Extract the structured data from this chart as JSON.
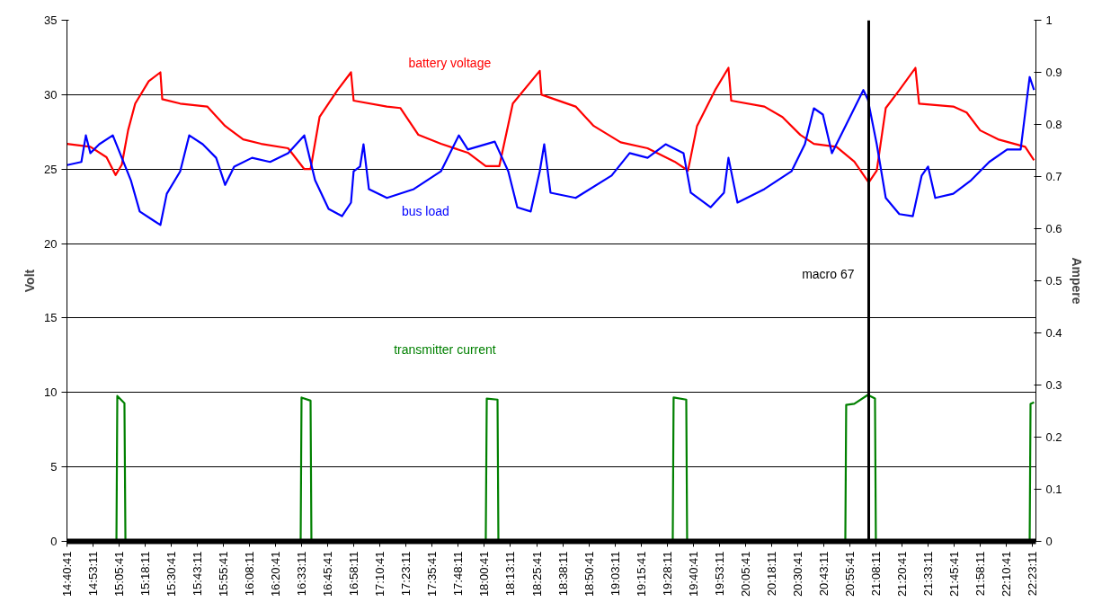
{
  "chart_data": {
    "type": "line",
    "xlabel": null,
    "ylabel": "Volt",
    "y2label": "Ampere",
    "xlim": [
      14.678,
      22.415
    ],
    "xticks": [
      {
        "value": 14.6781,
        "label": "14:40:41"
      },
      {
        "value": 14.8864,
        "label": "14:53:11"
      },
      {
        "value": 15.0947,
        "label": "15:05:41"
      },
      {
        "value": 15.3031,
        "label": "15:18:11"
      },
      {
        "value": 15.5114,
        "label": "15:30:41"
      },
      {
        "value": 15.7197,
        "label": "15:43:11"
      },
      {
        "value": 15.9281,
        "label": "15:55:41"
      },
      {
        "value": 16.1364,
        "label": "16:08:11"
      },
      {
        "value": 16.3447,
        "label": "16:20:41"
      },
      {
        "value": 16.5531,
        "label": "16:33:11"
      },
      {
        "value": 16.7614,
        "label": "16:45:41"
      },
      {
        "value": 16.9697,
        "label": "16:58:11"
      },
      {
        "value": 17.1781,
        "label": "17:10:41"
      },
      {
        "value": 17.3864,
        "label": "17:23:11"
      },
      {
        "value": 17.5947,
        "label": "17:35:41"
      },
      {
        "value": 17.8031,
        "label": "17:48:11"
      },
      {
        "value": 18.0114,
        "label": "18:00:41"
      },
      {
        "value": 18.2197,
        "label": "18:13:11"
      },
      {
        "value": 18.4281,
        "label": "18:25:41"
      },
      {
        "value": 18.6364,
        "label": "18:38:11"
      },
      {
        "value": 18.8447,
        "label": "18:50:41"
      },
      {
        "value": 19.0531,
        "label": "19:03:11"
      },
      {
        "value": 19.2614,
        "label": "19:15:41"
      },
      {
        "value": 19.4697,
        "label": "19:28:11"
      },
      {
        "value": 19.6781,
        "label": "19:40:41"
      },
      {
        "value": 19.8864,
        "label": "19:53:11"
      },
      {
        "value": 20.0947,
        "label": "20:05:41"
      },
      {
        "value": 20.3031,
        "label": "20:18:11"
      },
      {
        "value": 20.5114,
        "label": "20:30:41"
      },
      {
        "value": 20.7197,
        "label": "20:43:11"
      },
      {
        "value": 20.9281,
        "label": "20:55:41"
      },
      {
        "value": 21.1364,
        "label": "21:08:11"
      },
      {
        "value": 21.3447,
        "label": "21:20:41"
      },
      {
        "value": 21.5531,
        "label": "21:33:11"
      },
      {
        "value": 21.7614,
        "label": "21:45:41"
      },
      {
        "value": 21.9697,
        "label": "21:58:11"
      },
      {
        "value": 22.1781,
        "label": "22:10:41"
      },
      {
        "value": 22.3864,
        "label": "22:23:11"
      }
    ],
    "ylim": [
      0,
      35
    ],
    "yticks": [
      0,
      5,
      10,
      15,
      20,
      25,
      30,
      35
    ],
    "y2lim": [
      0,
      1
    ],
    "y2ticks": [
      0,
      0.1,
      0.2,
      0.3,
      0.4,
      0.5,
      0.6,
      0.7,
      0.8,
      0.9,
      1
    ],
    "grid": "y",
    "ref_lines": [
      {
        "axis": "x",
        "value": 21.08,
        "label": "macro 67",
        "color": "#000000"
      }
    ],
    "series": [
      {
        "name": "battery voltage",
        "color": "#ff0000",
        "x": [
          14.678,
          14.865,
          14.994,
          15.066,
          15.116,
          15.166,
          15.223,
          15.331,
          15.424,
          15.439,
          15.582,
          15.798,
          15.941,
          16.085,
          16.228,
          16.444,
          16.573,
          16.623,
          16.695,
          16.838,
          16.946,
          16.967,
          17.233,
          17.341,
          17.484,
          17.664,
          17.879,
          18.022,
          18.13,
          18.238,
          18.453,
          18.467,
          18.74,
          18.884,
          19.099,
          19.314,
          19.53,
          19.637,
          19.709,
          19.853,
          19.96,
          19.982,
          20.247,
          20.391,
          20.534,
          20.642,
          20.822,
          20.965,
          21.08,
          21.144,
          21.216,
          21.324,
          21.453,
          21.482,
          21.755,
          21.862,
          21.97,
          22.113,
          22.329,
          22.4
        ],
        "values": [
          26.7,
          26.5,
          25.8,
          24.6,
          25.3,
          27.6,
          29.4,
          30.9,
          31.5,
          29.7,
          29.4,
          29.2,
          27.9,
          27.0,
          26.7,
          26.4,
          25.0,
          25.0,
          28.5,
          30.3,
          31.5,
          29.6,
          29.2,
          29.1,
          27.3,
          26.7,
          26.1,
          25.2,
          25.2,
          29.4,
          31.6,
          30.0,
          29.2,
          27.9,
          26.8,
          26.4,
          25.5,
          24.9,
          27.9,
          30.3,
          31.8,
          29.6,
          29.2,
          28.5,
          27.3,
          26.7,
          26.5,
          25.5,
          24.1,
          24.9,
          29.1,
          30.3,
          31.8,
          29.4,
          29.2,
          28.8,
          27.6,
          27.0,
          26.5,
          25.6
        ]
      },
      {
        "name": "bus load",
        "color": "#0000ff",
        "axis": "y2",
        "x": [
          14.678,
          14.793,
          14.829,
          14.865,
          14.936,
          15.044,
          15.116,
          15.188,
          15.259,
          15.367,
          15.424,
          15.475,
          15.582,
          15.654,
          15.762,
          15.869,
          15.941,
          16.013,
          16.156,
          16.3,
          16.444,
          16.573,
          16.659,
          16.767,
          16.874,
          16.946,
          16.967,
          17.018,
          17.046,
          17.089,
          17.233,
          17.448,
          17.664,
          17.807,
          17.879,
          18.094,
          18.202,
          18.274,
          18.381,
          18.453,
          18.489,
          18.539,
          18.74,
          19.027,
          19.171,
          19.314,
          19.458,
          19.601,
          19.659,
          19.817,
          19.924,
          19.96,
          20.032,
          20.247,
          20.463,
          20.57,
          20.642,
          20.714,
          20.786,
          20.857,
          20.965,
          21.037,
          21.073,
          21.144,
          21.216,
          21.324,
          21.432,
          21.503,
          21.554,
          21.611,
          21.755,
          21.898,
          22.042,
          22.185,
          22.293,
          22.365,
          22.4
        ],
        "values": [
          0.722,
          0.728,
          0.779,
          0.745,
          0.762,
          0.779,
          0.736,
          0.693,
          0.633,
          0.616,
          0.607,
          0.667,
          0.71,
          0.779,
          0.762,
          0.736,
          0.684,
          0.719,
          0.736,
          0.728,
          0.745,
          0.779,
          0.693,
          0.638,
          0.624,
          0.65,
          0.71,
          0.719,
          0.762,
          0.676,
          0.659,
          0.676,
          0.71,
          0.779,
          0.752,
          0.767,
          0.71,
          0.641,
          0.633,
          0.71,
          0.762,
          0.669,
          0.659,
          0.702,
          0.745,
          0.736,
          0.762,
          0.745,
          0.669,
          0.641,
          0.669,
          0.736,
          0.65,
          0.676,
          0.71,
          0.762,
          0.831,
          0.819,
          0.745,
          0.779,
          0.831,
          0.866,
          0.848,
          0.762,
          0.659,
          0.628,
          0.624,
          0.702,
          0.719,
          0.659,
          0.667,
          0.693,
          0.728,
          0.752,
          0.752,
          0.891,
          0.866
        ]
      },
      {
        "name": "transmitter current",
        "color": "#008000",
        "axis": "y2",
        "x": [
          14.678,
          15.073,
          15.08,
          15.137,
          15.145,
          16.544,
          16.551,
          16.623,
          16.63,
          18.022,
          18.03,
          18.116,
          18.123,
          19.515,
          19.522,
          19.623,
          19.63,
          20.893,
          20.9,
          20.965,
          21.073,
          21.13,
          21.137,
          22.365,
          22.372,
          22.4
        ],
        "values": [
          0,
          0,
          0.279,
          0.265,
          0,
          0,
          0.276,
          0.27,
          0,
          0,
          0.274,
          0.272,
          0,
          0,
          0.276,
          0.272,
          0,
          0,
          0.262,
          0.264,
          0.281,
          0.274,
          0,
          0,
          0.264,
          0.267
        ]
      }
    ]
  }
}
